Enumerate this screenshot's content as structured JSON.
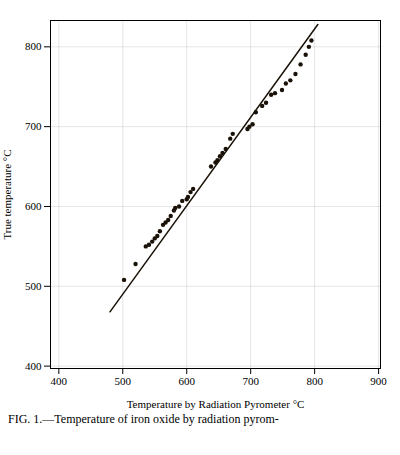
{
  "chart_data": {
    "type": "scatter",
    "xlabel": "Temperature by Radiation Pyrometer °C",
    "ylabel": "True temperature °C",
    "caption": "FIG. 1.—Temperature of iron oxide by radiation pyrom-",
    "xlim": [
      387,
      903
    ],
    "ylim": [
      397,
      833
    ],
    "xticks": [
      400,
      500,
      600,
      700,
      800,
      900
    ],
    "yticks": [
      400,
      500,
      600,
      700,
      800
    ],
    "grid": true,
    "series": [
      {
        "type": "scatter",
        "color": "#1a1208",
        "marker": "circle",
        "x": [
          502,
          520,
          536,
          541,
          546,
          550,
          554,
          558,
          563,
          567,
          571,
          575,
          580,
          582,
          588,
          593,
          600,
          602,
          606,
          610,
          638,
          645,
          648,
          652,
          656,
          661,
          668,
          672,
          695,
          698,
          703,
          708,
          718,
          724,
          732,
          738,
          749,
          755,
          762,
          770,
          778,
          786,
          791,
          795
        ],
        "values": [
          508,
          528,
          550,
          552,
          556,
          560,
          563,
          569,
          577,
          580,
          583,
          588,
          595,
          598,
          600,
          607,
          609,
          612,
          618,
          622,
          650,
          655,
          658,
          663,
          667,
          672,
          685,
          691,
          697,
          700,
          703,
          718,
          726,
          730,
          740,
          742,
          746,
          754,
          758,
          766,
          778,
          790,
          800,
          808
        ]
      },
      {
        "type": "line",
        "color": "#1a1208",
        "line_style": "solid",
        "x": [
          480,
          805
        ],
        "values": [
          468,
          828
        ]
      }
    ]
  }
}
